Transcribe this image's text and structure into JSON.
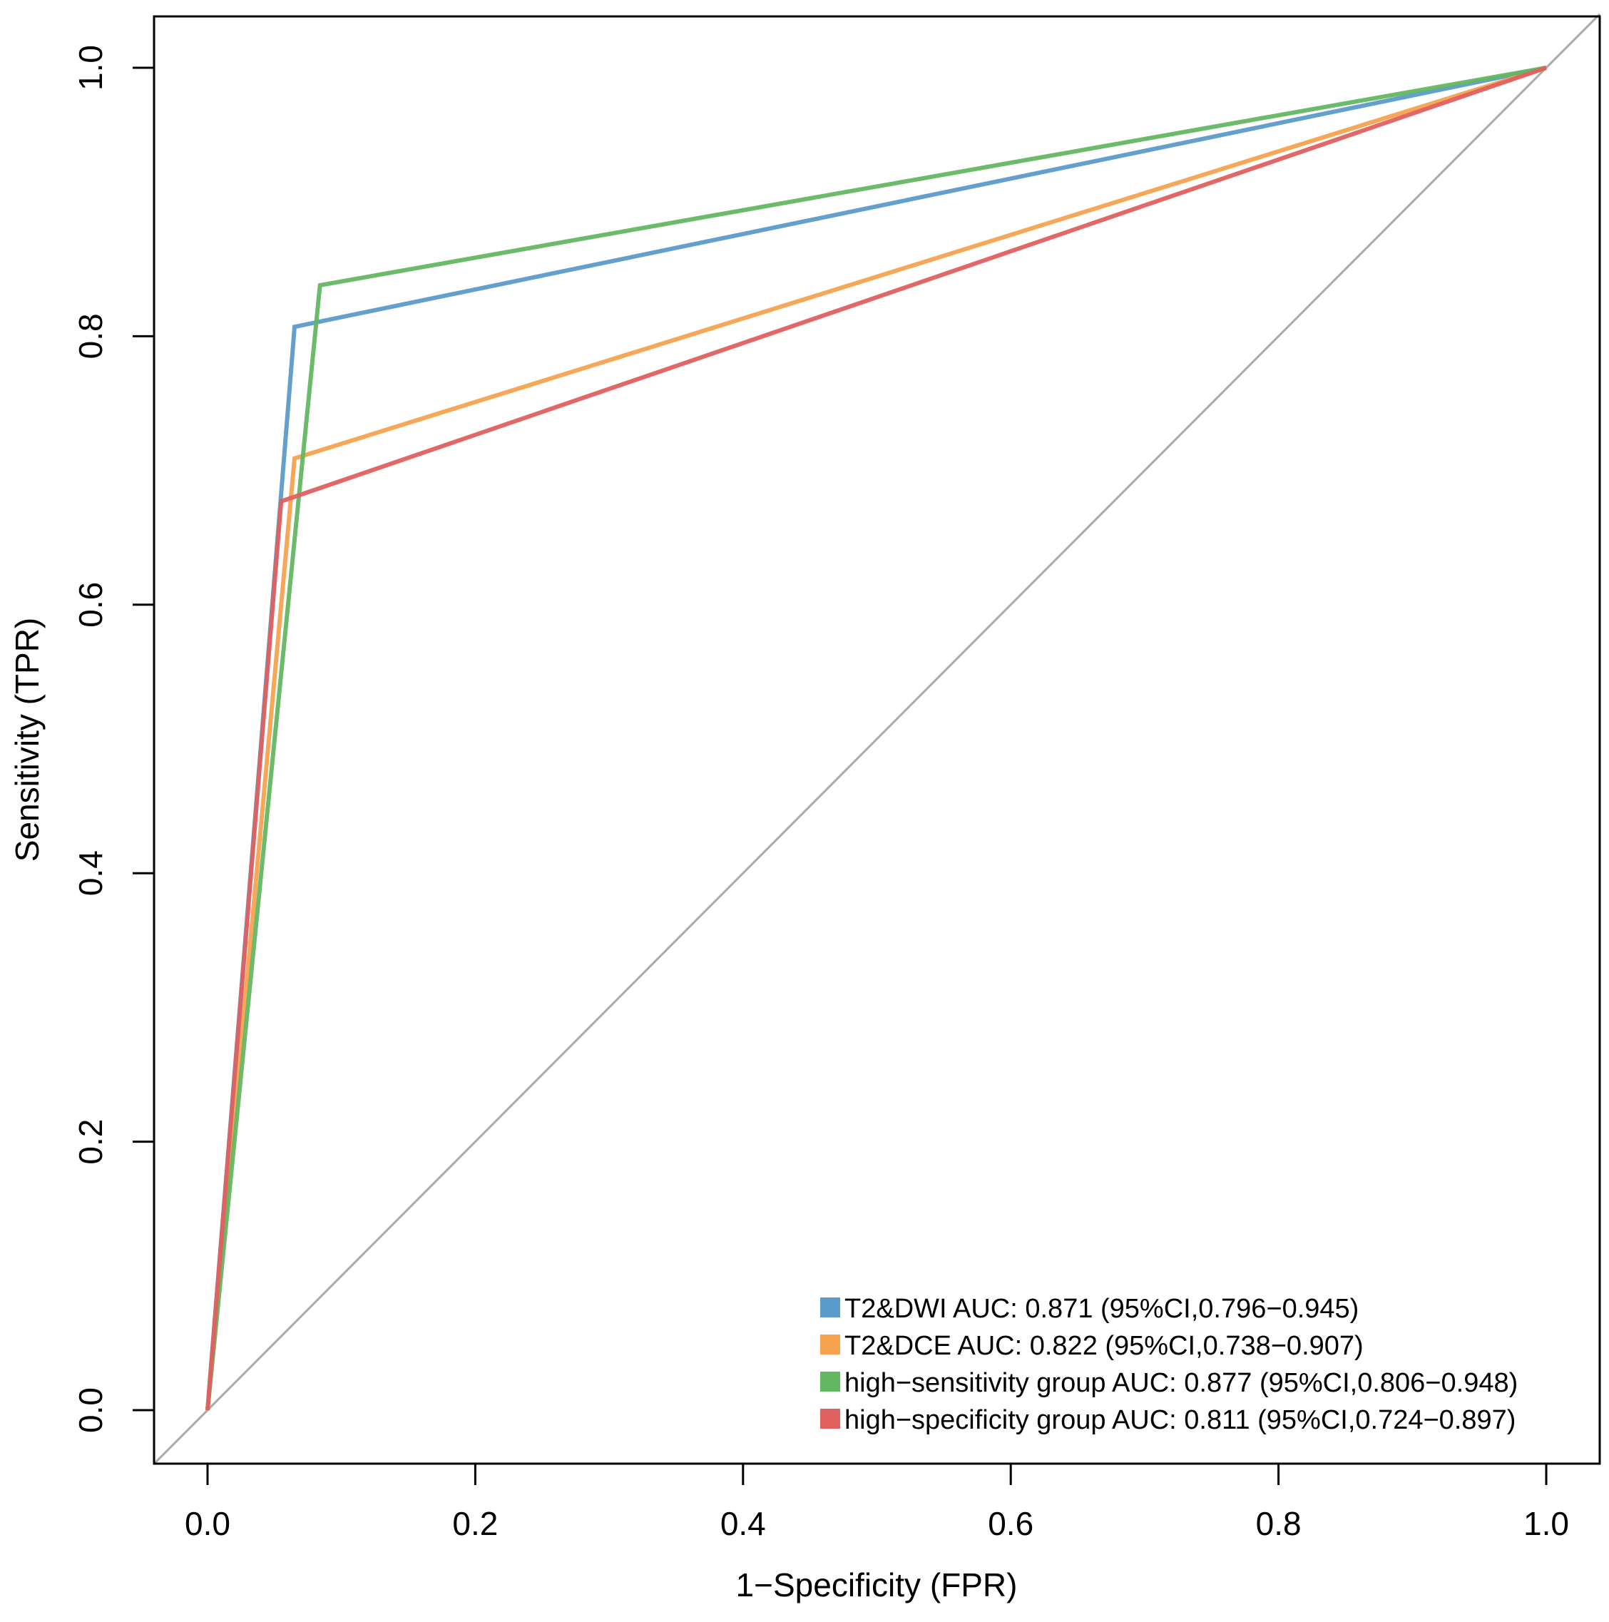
{
  "chart_data": {
    "type": "line",
    "title": "",
    "xlabel": "1−Specificity (FPR)",
    "ylabel": "Sensitivity (TPR)",
    "xlim": [
      0,
      1
    ],
    "ylim": [
      0,
      1
    ],
    "xticks": [
      0.0,
      0.2,
      0.4,
      0.6,
      0.8,
      1.0
    ],
    "yticks": [
      0.0,
      0.2,
      0.4,
      0.6,
      0.8,
      1.0
    ],
    "xtick_labels": [
      "0.0",
      "0.2",
      "0.4",
      "0.6",
      "0.8",
      "1.0"
    ],
    "ytick_labels": [
      "0.0",
      "0.2",
      "0.4",
      "0.6",
      "0.8",
      "1.0"
    ],
    "grid": false,
    "legend_position": "bottom-right",
    "reference_line": {
      "name": "chance diagonal",
      "color": "#aaaaaa"
    },
    "series": [
      {
        "name": "T2&DWI",
        "label": "T2&DWI AUC: 0.871 (95%CI,0.796−0.945)",
        "color": "#5b9bcb",
        "auc": 0.871,
        "ci": [
          0.796,
          0.945
        ],
        "x": [
          0.0,
          0.065,
          1.0
        ],
        "y": [
          0.0,
          0.807,
          1.0
        ]
      },
      {
        "name": "T2&DCE",
        "label": "T2&DCE AUC: 0.822 (95%CI,0.738−0.907)",
        "color": "#f7a24f",
        "auc": 0.822,
        "ci": [
          0.738,
          0.907
        ],
        "x": [
          0.0,
          0.065,
          1.0
        ],
        "y": [
          0.0,
          0.709,
          1.0
        ]
      },
      {
        "name": "high-sensitivity group",
        "label": "high−sensitivity group AUC: 0.877 (95%CI,0.806−0.948)",
        "color": "#63b762",
        "auc": 0.877,
        "ci": [
          0.806,
          0.948
        ],
        "x": [
          0.0,
          0.084,
          1.0
        ],
        "y": [
          0.0,
          0.838,
          1.0
        ]
      },
      {
        "name": "high-specificity group",
        "label": "high−specificity group AUC: 0.811 (95%CI,0.724−0.897)",
        "color": "#e0605f",
        "auc": 0.811,
        "ci": [
          0.724,
          0.897
        ],
        "x": [
          0.0,
          0.055,
          1.0
        ],
        "y": [
          0.0,
          0.677,
          1.0
        ]
      }
    ]
  }
}
